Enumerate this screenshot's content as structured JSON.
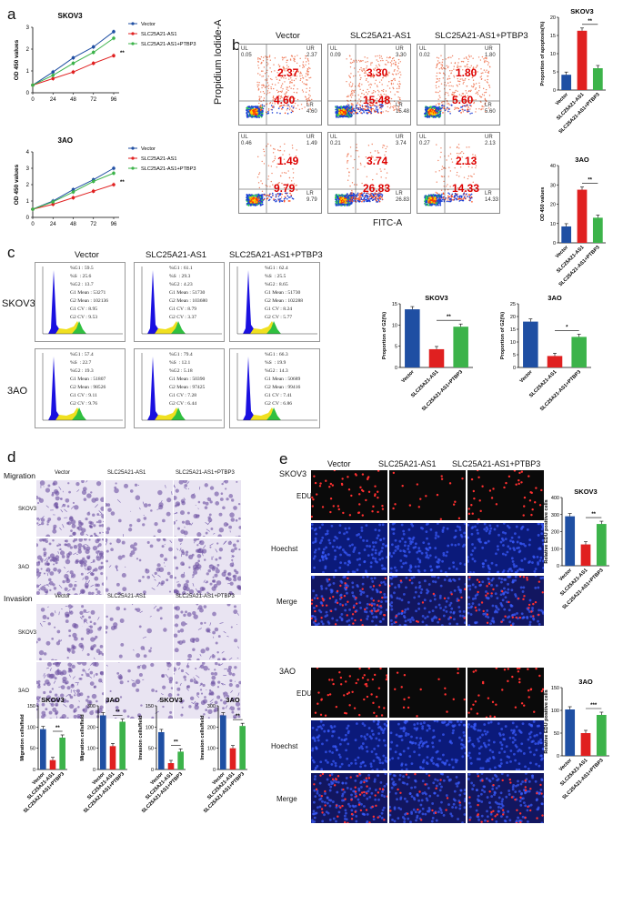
{
  "panels": {
    "a": "a",
    "b": "b",
    "c": "c",
    "d": "d",
    "e": "e"
  },
  "colors": {
    "vector": "#1f4fa3",
    "as1": "#e02020",
    "ptbp3": "#3cb34a"
  },
  "panel_a": {
    "groups": [
      "Vector",
      "SLC25A21-AS1",
      "SLC25A21-AS1+PTBP3"
    ],
    "star": "**",
    "ylabel": "OD 450 values",
    "charts": [
      {
        "title": "SKOV3",
        "x": [
          0,
          24,
          48,
          72,
          96
        ],
        "yticks": [
          "0",
          "1",
          "2",
          "3"
        ]
      },
      {
        "title": "3AO",
        "x": [
          0,
          24,
          48,
          72,
          96
        ],
        "yticks": [
          "0",
          "1",
          "2",
          "3",
          "4"
        ]
      }
    ]
  },
  "panel_b": {
    "col_headers": [
      "Vector",
      "SLC25A21-AS1",
      "SLC25A21-AS1+PTBP3"
    ],
    "ylabel": "Propidium Iodide-A",
    "xlabel": "FITC-A",
    "rows": [
      [
        {
          "ul": "UL",
          "ulv": "0.05",
          "ur": "UR",
          "urv": "2.37",
          "lr": "LR",
          "lrv": "4.60",
          "big_ur": "2.37",
          "big_lr": "4.60"
        },
        {
          "ul": "UL",
          "ulv": "0.09",
          "ur": "UR",
          "urv": "3.30",
          "lr": "LR",
          "lrv": "15.48",
          "big_ur": "3.30",
          "big_lr": "15.48"
        },
        {
          "ul": "UL",
          "ulv": "0.02",
          "ur": "UR",
          "urv": "1.80",
          "lr": "LR",
          "lrv": "5.60",
          "big_ur": "1.80",
          "big_lr": "5.60"
        }
      ],
      [
        {
          "ul": "UL",
          "ulv": "0.46",
          "ur": "UR",
          "urv": "1.49",
          "lr": "LR",
          "lrv": "9.79",
          "big_ur": "1.49",
          "big_lr": "9.79"
        },
        {
          "ul": "UL",
          "ulv": "0.21",
          "ur": "UR",
          "urv": "3.74",
          "lr": "LR",
          "lrv": "26.83",
          "big_ur": "3.74",
          "big_lr": "26.83"
        },
        {
          "ul": "UL",
          "ulv": "0.27",
          "ur": "UR",
          "urv": "2.13",
          "lr": "LR",
          "lrv": "14.33",
          "big_ur": "2.13",
          "big_lr": "14.33"
        }
      ]
    ]
  },
  "panel_c": {
    "col_headers": [
      "Vector",
      "SLC25A21-AS1",
      "SLC25A21-AS1+PTBP3"
    ],
    "row_labels": [
      "SKOV3",
      "3AO"
    ],
    "stats": [
      [
        "%G1 : 59.5\n%S  : 25.6\n%G2 : 13.7\nG1 Mean : 53271\nG2 Mean : 102136\nG1 CV : 8.95\nG2 CV : 9.53",
        "%G1 : 61.1\n%S  : 29.3\n%G2 : 4.23\nG1 Mean : 51730\nG2 Mean : 103680\nG1 CV : 8.79\nG2 CV : 3.37",
        "%G1 : 62.4\n%S  : 25.5\n%G2 : 8.65\nG1 Mean : 51730\nG2 Mean : 102288\nG1 CV : 8.24\nG2 CV : 5.77"
      ],
      [
        "%G1 : 57.4\n%S  : 22.7\n%G2 : 19.3\nG1 Mean : 51807\nG2 Mean : 98526\nG1 CV : 9.11\nG2 CV : 9.76",
        "%G1 : 79.4\n%S  : 12.1\n%G2 : 5.18\nG1 Mean : 50390\nG2 Mean : 97425\nG1 CV : 7.28\nG2 CV : 6.44",
        "%G1 : 66.3\n%S  : 19.9\n%G2 : 14.3\nG1 Mean : 50689\nG2 Mean : 99416\nG1 CV : 7.41\nG2 CV : 6.86"
      ]
    ]
  },
  "panel_d": {
    "labels": [
      "Migration",
      "Invasion"
    ],
    "col_headers": [
      "Vector",
      "SLC25A21-AS1",
      "SLC25A21-AS1+PTBP3"
    ],
    "row_labels": [
      "SKOV3",
      "3AO"
    ]
  },
  "panel_e": {
    "col_headers": [
      "Vector",
      "SLC25A21-AS1",
      "SLC25A21-AS1+PTBP3"
    ],
    "cells": [
      "SKOV3",
      "3AO"
    ],
    "row_labels": [
      "EDU",
      "Hoechst",
      "Merge"
    ]
  },
  "chart_data": [
    {
      "type": "line",
      "title": "SKOV3",
      "ylabel": "OD 450 values",
      "x": [
        0,
        24,
        48,
        72,
        96
      ],
      "ylim": [
        0,
        3
      ],
      "series": [
        {
          "name": "Vector",
          "values": [
            0.35,
            0.95,
            1.6,
            2.1,
            2.8
          ]
        },
        {
          "name": "SLC25A21-AS1",
          "values": [
            0.35,
            0.65,
            0.95,
            1.35,
            1.7
          ]
        },
        {
          "name": "SLC25A21-AS1+PTBP3",
          "values": [
            0.35,
            0.8,
            1.35,
            1.85,
            2.5
          ]
        }
      ]
    },
    {
      "type": "line",
      "title": "3AO",
      "ylabel": "OD 450 values",
      "x": [
        0,
        24,
        48,
        72,
        96
      ],
      "ylim": [
        0,
        4
      ],
      "series": [
        {
          "name": "Vector",
          "values": [
            0.5,
            1.0,
            1.7,
            2.3,
            3.0
          ]
        },
        {
          "name": "SLC25A21-AS1",
          "values": [
            0.5,
            0.8,
            1.2,
            1.6,
            2.0
          ]
        },
        {
          "name": "SLC25A21-AS1+PTBP3",
          "values": [
            0.5,
            0.95,
            1.55,
            2.2,
            2.7
          ]
        }
      ]
    },
    {
      "type": "bar",
      "title": "SKOV3",
      "ylabel": "Proportion of apoptosis(%)",
      "categories": [
        "Vector",
        "SLC25A21-AS1",
        "SLC25A21-AS1+PTBP3"
      ],
      "values": [
        4.2,
        16.3,
        6.0
      ],
      "ylim": [
        0,
        20
      ],
      "yticks": [
        "0",
        "5",
        "10",
        "15",
        "20"
      ],
      "star": "**"
    },
    {
      "type": "bar",
      "title": "3AO",
      "ylabel": "OD 450 values",
      "categories": [
        "Vector",
        "SLC25A21-AS1",
        "SLC25A21-AS1+PTBP3"
      ],
      "values": [
        8.5,
        27.5,
        13.0
      ],
      "ylim": [
        0,
        40
      ],
      "yticks": [
        "0",
        "10",
        "20",
        "30",
        "40"
      ],
      "star": "**"
    },
    {
      "type": "bar",
      "title": "SKOV3",
      "ylabel": "Proportion of G2(%)",
      "categories": [
        "Vector",
        "SLC25A21-AS1",
        "SLC25A21-AS1+PTBP3"
      ],
      "values": [
        13.7,
        4.3,
        9.6
      ],
      "ylim": [
        0,
        15
      ],
      "yticks": [
        "0",
        "5",
        "10",
        "15"
      ],
      "star": "**"
    },
    {
      "type": "bar",
      "title": "3AO",
      "ylabel": "Proportion of G2(%)",
      "categories": [
        "Vector",
        "SLC25A21-AS1",
        "SLC25A21-AS1+PTBP3"
      ],
      "values": [
        18.0,
        4.5,
        12.0
      ],
      "ylim": [
        0,
        25
      ],
      "yticks": [
        "0",
        "5",
        "10",
        "15",
        "20",
        "25"
      ],
      "star": "*"
    },
    {
      "type": "bar",
      "title": "SKOV3",
      "ylabel": "Migration cells/field",
      "categories": [
        "Vector",
        "SLC25A21-AS1",
        "SLC25A21-AS1+PTBP3"
      ],
      "values": [
        95,
        22,
        75
      ],
      "ylim": [
        0,
        150
      ],
      "yticks": [
        "0",
        "50",
        "100",
        "150"
      ],
      "star": "**"
    },
    {
      "type": "bar",
      "title": "3AO",
      "ylabel": "Migration cells/field",
      "categories": [
        "Vector",
        "SLC25A21-AS1",
        "SLC25A21-AS1+PTBP3"
      ],
      "values": [
        255,
        110,
        225
      ],
      "ylim": [
        0,
        300
      ],
      "yticks": [
        "0",
        "100",
        "200",
        "300"
      ],
      "star": "**"
    },
    {
      "type": "bar",
      "title": "SKOV3",
      "ylabel": "Invasion cells/field",
      "categories": [
        "Vector",
        "SLC25A21-AS1",
        "SLC25A21-AS1+PTBP3"
      ],
      "values": [
        88,
        15,
        42
      ],
      "ylim": [
        0,
        150
      ],
      "yticks": [
        "0",
        "50",
        "100",
        "150"
      ],
      "star": "**"
    },
    {
      "type": "bar",
      "title": "3AO",
      "ylabel": "Invasion cells/field",
      "categories": [
        "Vector",
        "SLC25A21-AS1",
        "SLC25A21-AS1+PTBP3"
      ],
      "values": [
        255,
        100,
        205
      ],
      "ylim": [
        0,
        300
      ],
      "yticks": [
        "0",
        "100",
        "200",
        "300"
      ],
      "star": "**"
    },
    {
      "type": "bar",
      "title": "SKOV3",
      "ylabel": "Relative EDU positive cells",
      "categories": [
        "Vector",
        "SLC25A21-AS1",
        "SLC25A21-AS1+PTBP3"
      ],
      "values": [
        290,
        125,
        245
      ],
      "ylim": [
        0,
        400
      ],
      "yticks": [
        "0",
        "100",
        "200",
        "300",
        "400"
      ],
      "star": "**"
    },
    {
      "type": "bar",
      "title": "3AO",
      "ylabel": "Relative EDU positive cells",
      "categories": [
        "Vector",
        "SLC25A21-AS1",
        "SLC25A21-AS1+PTBP3"
      ],
      "values": [
        102,
        50,
        90
      ],
      "ylim": [
        0,
        150
      ],
      "yticks": [
        "0",
        "50",
        "100",
        "150"
      ],
      "star": "***"
    }
  ]
}
